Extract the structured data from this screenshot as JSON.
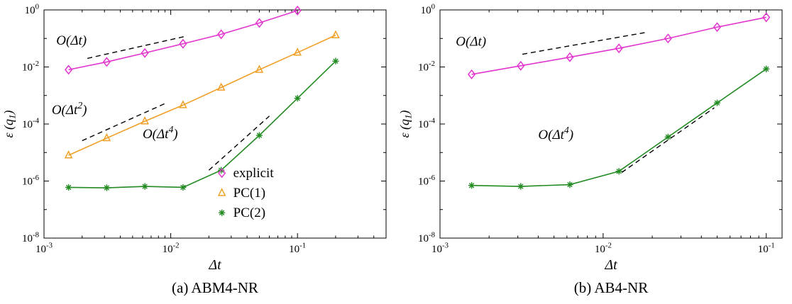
{
  "figure": {
    "captions": {
      "a": "(a) ABM4-NR",
      "b": "(b) AB4-NR"
    }
  },
  "chart_data": [
    {
      "id": "a",
      "type": "line",
      "caption": "(a) ABM4-NR",
      "xlabel": "Δt",
      "ylabel": "ε (q_1)",
      "xscale": "log",
      "yscale": "log",
      "xlim": [
        0.001,
        0.5
      ],
      "ylim": [
        1e-08,
        1
      ],
      "xticks": [
        0.001,
        0.01,
        0.1
      ],
      "xtick_labels": [
        "10^-3",
        "10^-2",
        "10^-1"
      ],
      "yticks": [
        1,
        0.01,
        0.0001,
        1e-06,
        1e-08
      ],
      "ytick_labels": [
        "10^0",
        "10^-2",
        "10^-4",
        "10^-6",
        "10^-8"
      ],
      "grid": false,
      "legend": true,
      "legend_position": "lower-right",
      "series": [
        {
          "name": "explicit",
          "color": "#e135cd",
          "marker": "diamond",
          "x": [
            0.0015625,
            0.003125,
            0.00625,
            0.0125,
            0.025,
            0.05,
            0.1
          ],
          "y": [
            0.008,
            0.015,
            0.031,
            0.065,
            0.14,
            0.35,
            0.95
          ]
        },
        {
          "name": "PC(1)",
          "color": "#f0a028",
          "marker": "triangle",
          "x": [
            0.0015625,
            0.003125,
            0.00625,
            0.0125,
            0.025,
            0.05,
            0.1,
            0.2
          ],
          "y": [
            8e-06,
            3.2e-05,
            0.000125,
            0.00046,
            0.0019,
            0.008,
            0.032,
            0.13
          ]
        },
        {
          "name": "PC(2)",
          "color": "#228B22",
          "marker": "asterisk",
          "x": [
            0.0015625,
            0.003125,
            0.00625,
            0.0125,
            0.025,
            0.05,
            0.1,
            0.2
          ],
          "y": [
            6e-07,
            5.8e-07,
            6.5e-07,
            6e-07,
            2.4e-06,
            4e-05,
            0.0008,
            0.016
          ]
        }
      ],
      "guides": [
        {
          "x": [
            0.0022,
            0.013
          ],
          "y": [
            0.02,
            0.118
          ]
        },
        {
          "x": [
            0.002,
            0.009
          ],
          "y": [
            2.6e-05,
            0.00052
          ]
        },
        {
          "x": [
            0.02,
            0.06
          ],
          "y": [
            2.4e-06,
            0.00019
          ]
        }
      ],
      "annotations": [
        {
          "text": "O(Δt)",
          "x": 0.00125,
          "y": 0.06
        },
        {
          "text": "O(Δt^2)",
          "x": 0.00115,
          "y": 0.00022
        },
        {
          "text": "O(Δt^4)",
          "x": 0.006,
          "y": 3.2e-05
        }
      ]
    },
    {
      "id": "b",
      "type": "line",
      "caption": "(b) AB4-NR",
      "xlabel": "Δt",
      "ylabel": "ε (q_1)",
      "xscale": "log",
      "yscale": "log",
      "xlim": [
        0.001,
        0.125
      ],
      "ylim": [
        1e-08,
        1
      ],
      "xticks": [
        0.001,
        0.01,
        0.1
      ],
      "xtick_labels": [
        "10^-3",
        "10^-2",
        "10^-1"
      ],
      "yticks": [
        1,
        0.01,
        0.0001,
        1e-06,
        1e-08
      ],
      "ytick_labels": [
        "10^0",
        "10^-2",
        "10^-4",
        "10^-6",
        "10^-8"
      ],
      "grid": false,
      "legend": false,
      "series": [
        {
          "name": "explicit",
          "color": "#e135cd",
          "marker": "diamond",
          "x": [
            0.0015625,
            0.003125,
            0.00625,
            0.0125,
            0.025,
            0.05,
            0.1
          ],
          "y": [
            0.0055,
            0.011,
            0.022,
            0.045,
            0.1,
            0.25,
            0.55
          ]
        },
        {
          "name": "PC(2)",
          "color": "#228B22",
          "marker": "asterisk",
          "x": [
            0.0015625,
            0.003125,
            0.00625,
            0.0125,
            0.025,
            0.05,
            0.1
          ],
          "y": [
            7e-07,
            6.5e-07,
            7.5e-07,
            2.2e-06,
            3.5e-05,
            0.00055,
            0.0085
          ]
        }
      ],
      "guides": [
        {
          "x": [
            0.0032,
            0.018
          ],
          "y": [
            0.028,
            0.16
          ]
        },
        {
          "x": [
            0.013,
            0.048
          ],
          "y": [
            2e-06,
            0.00037
          ]
        }
      ],
      "annotations": [
        {
          "text": "O(Δt)",
          "x": 0.00125,
          "y": 0.055
        },
        {
          "text": "O(Δt^4)",
          "x": 0.004,
          "y": 3e-05
        }
      ]
    }
  ]
}
